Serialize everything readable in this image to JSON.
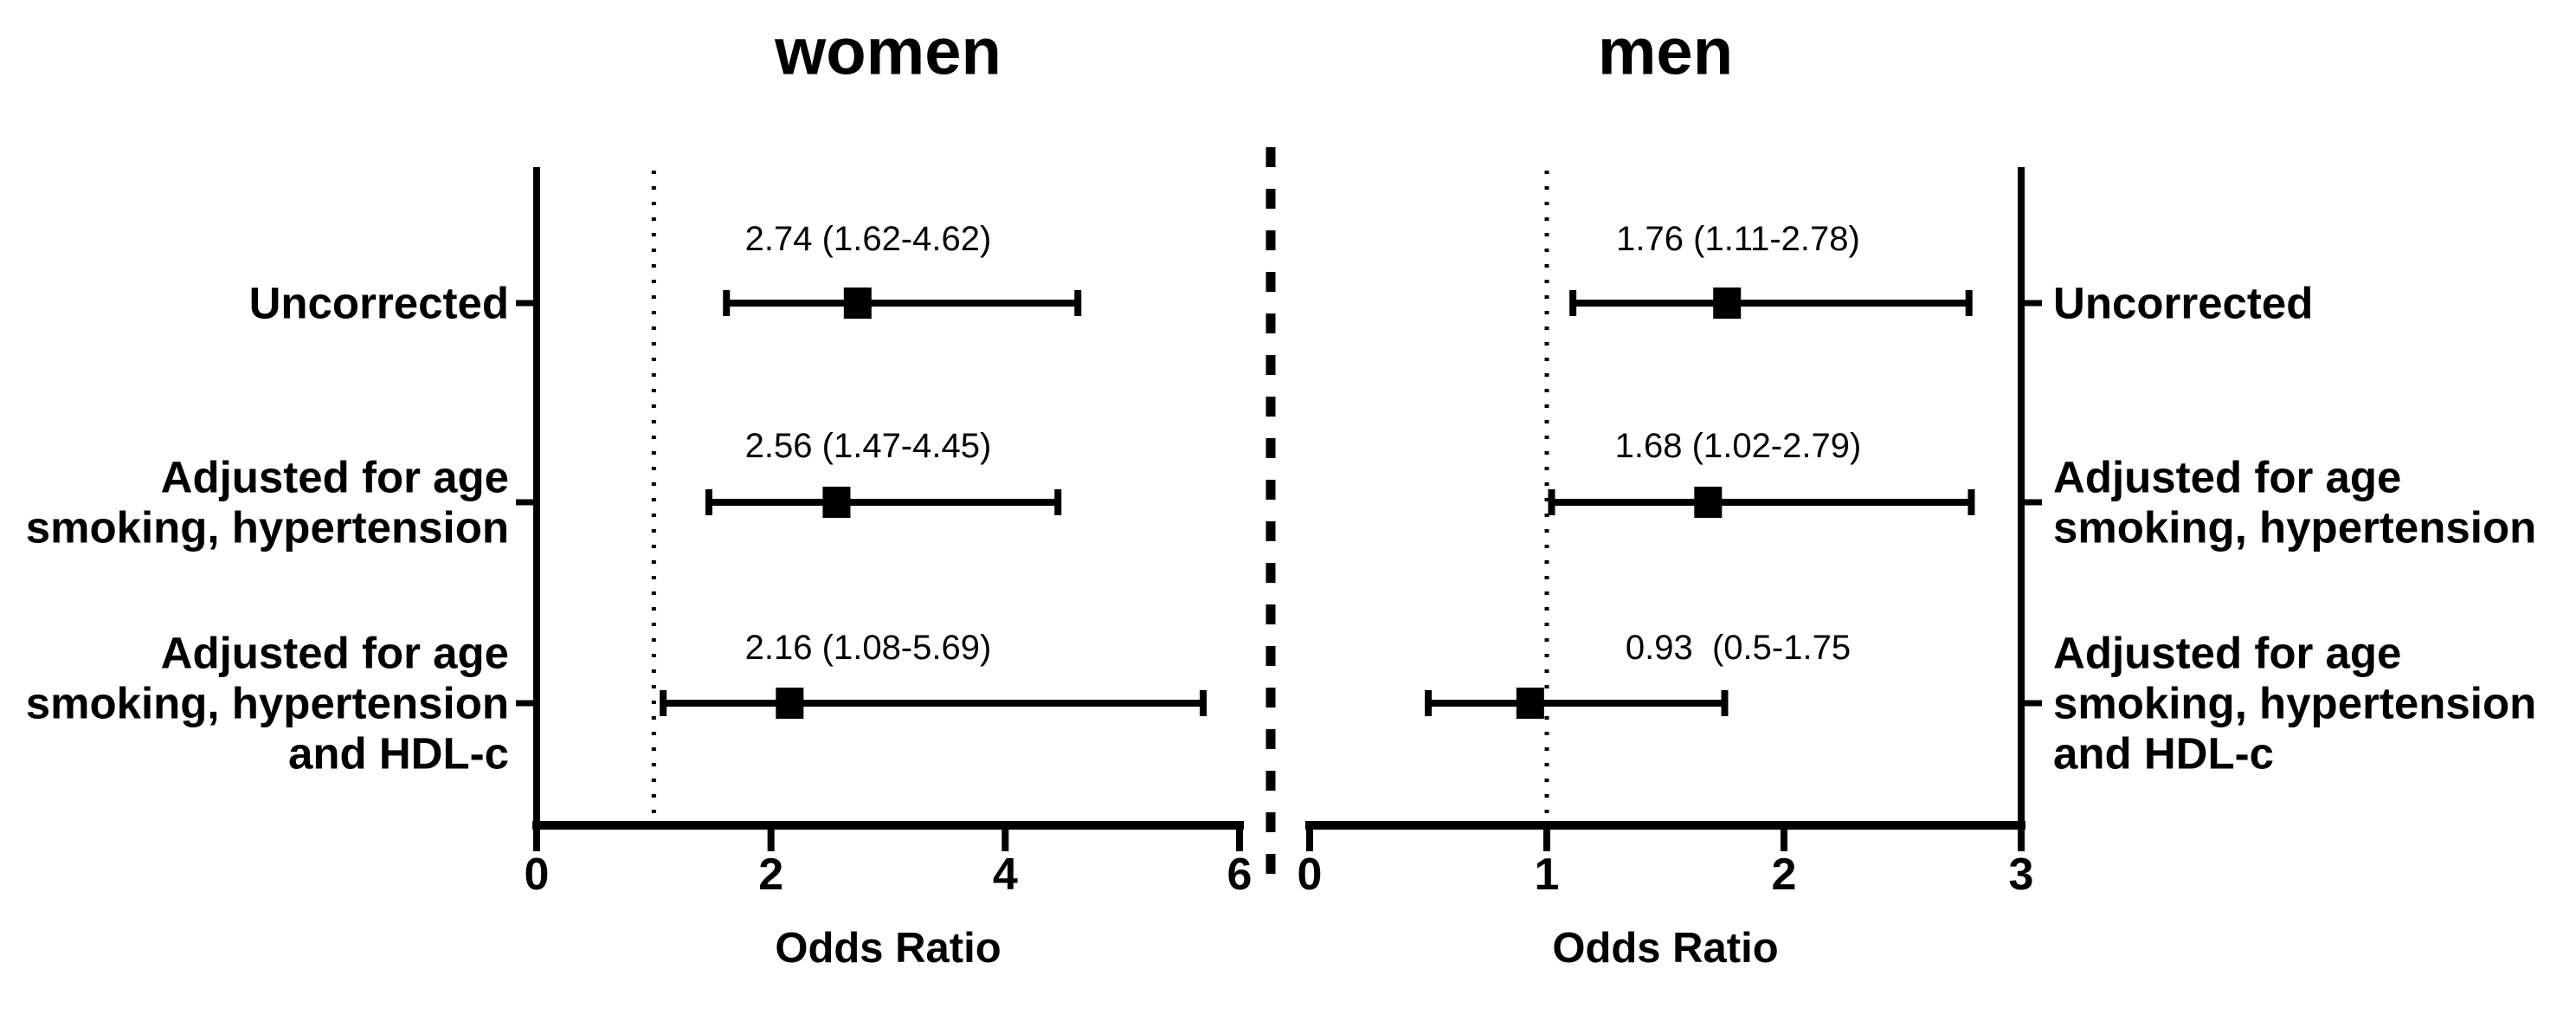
{
  "colors": {
    "ink": "#000000",
    "annotation": "#3c3c3c",
    "background": "#ffffff"
  },
  "chart_data": {
    "type": "forest",
    "layout_note": "two mirrored forest-plot panels separated by a heavy dashed divider; squares are point estimates, horizontal whiskers are 95% CI, dotted vertical line marks odds ratio = 1",
    "panels": [
      {
        "id": "women",
        "title": "women",
        "xlabel": "Odds Ratio",
        "xlim": [
          0,
          6
        ],
        "xticks": [
          0,
          2,
          4,
          6
        ],
        "reference_line": 1,
        "label_side": "left",
        "rows": [
          {
            "label_lines": [
              "Uncorrected"
            ],
            "or": 2.74,
            "ci_low": 1.62,
            "ci_high": 4.62,
            "annotation": "2.74 (1.62-4.62)"
          },
          {
            "label_lines": [
              "Adjusted for age",
              "smoking, hypertension"
            ],
            "or": 2.56,
            "ci_low": 1.47,
            "ci_high": 4.45,
            "annotation": "2.56 (1.47-4.45)"
          },
          {
            "label_lines": [
              "Adjusted for age",
              "smoking, hypertension",
              "and HDL-c"
            ],
            "or": 2.16,
            "ci_low": 1.08,
            "ci_high": 5.69,
            "annotation": "2.16 (1.08-5.69)"
          }
        ]
      },
      {
        "id": "men",
        "title": "men",
        "xlabel": "Odds Ratio",
        "xlim": [
          0,
          3
        ],
        "xticks": [
          0,
          1,
          2,
          3
        ],
        "reference_line": 1,
        "label_side": "right",
        "rows": [
          {
            "label_lines": [
              "Uncorrected"
            ],
            "or": 1.76,
            "ci_low": 1.11,
            "ci_high": 2.78,
            "annotation": "1.76 (1.11-2.78)"
          },
          {
            "label_lines": [
              "Adjusted for age",
              "smoking, hypertension"
            ],
            "or": 1.68,
            "ci_low": 1.02,
            "ci_high": 2.79,
            "annotation": "1.68 (1.02-2.79)"
          },
          {
            "label_lines": [
              "Adjusted for age",
              "smoking, hypertension",
              "and HDL-c"
            ],
            "or": 0.93,
            "ci_low": 0.5,
            "ci_high": 1.75,
            "annotation": "0.93  (0.5-1.75"
          }
        ]
      }
    ],
    "divider": {
      "style": "dashed"
    }
  }
}
